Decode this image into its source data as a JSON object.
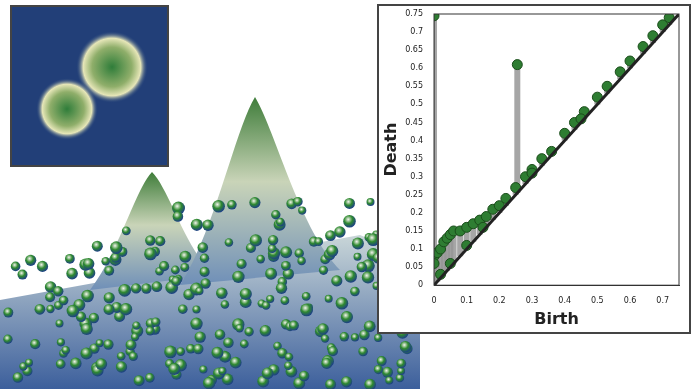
{
  "chart_data": {
    "type": "scatter",
    "x_label": "Birth",
    "y_label": "Death",
    "xlim": [
      0,
      0.75
    ],
    "ylim": [
      0,
      0.75
    ],
    "xticks": [
      0,
      0.1,
      0.2,
      0.3,
      0.4,
      0.5,
      0.6,
      0.7
    ],
    "yticks": [
      0,
      0.05,
      0.1,
      0.15,
      0.2,
      0.25,
      0.3,
      0.35,
      0.4,
      0.45,
      0.5,
      0.55,
      0.6,
      0.65,
      0.7,
      0.75
    ],
    "grid": false,
    "color": "#2e7d32",
    "marker": "circle",
    "x": [
      0,
      0.255,
      0,
      0,
      0.01,
      0.02,
      0.03,
      0.04,
      0.05,
      0.06,
      0.08,
      0.1,
      0.12,
      0.14,
      0.16,
      0.18,
      0.2,
      0.22,
      0.25,
      0.28,
      0.3,
      0.33,
      0.36,
      0.4,
      0.43,
      0.46,
      0.5,
      0.53,
      0.57,
      0.6,
      0.64,
      0.67,
      0.7,
      0.72,
      0.02,
      0.05,
      0.1,
      0.15,
      0.3,
      0.45
    ],
    "values": [
      0.745,
      0.61,
      0.08,
      0.06,
      0.09,
      0.1,
      0.12,
      0.13,
      0.14,
      0.15,
      0.15,
      0.16,
      0.17,
      0.18,
      0.19,
      0.21,
      0.22,
      0.24,
      0.27,
      0.3,
      0.32,
      0.35,
      0.37,
      0.42,
      0.45,
      0.48,
      0.52,
      0.55,
      0.59,
      0.62,
      0.66,
      0.69,
      0.72,
      0.74,
      0.03,
      0.06,
      0.11,
      0.16,
      0.31,
      0.46
    ]
  }
}
